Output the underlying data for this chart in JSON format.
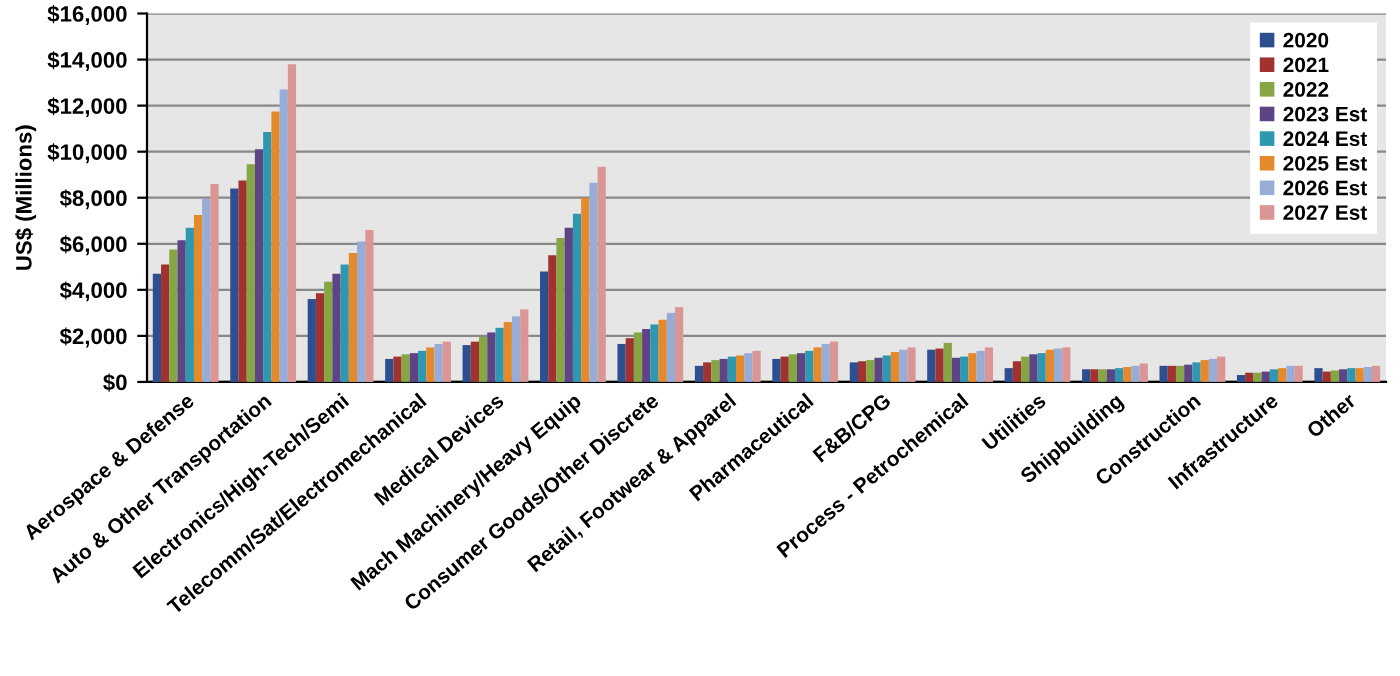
{
  "chart_data": {
    "type": "bar",
    "ylabel": "US$ (Millions)",
    "categories": [
      "Aerospace & Defense",
      "Auto & Other Transportation",
      "Electronics/High-Tech/Semi",
      "Telecomm/Sat/Electromechanical",
      "Medical Devices",
      "Mach Machinery/Heavy Equip",
      "Consumer Goods/Other Discrete",
      "Retail, Footwear & Apparel",
      "Pharmaceutical",
      "F&B/CPG",
      "Process - Petrochemical",
      "Utilities",
      "Shipbuilding",
      "Construction",
      "Infrastructure",
      "Other"
    ],
    "series": [
      {
        "name": "2020",
        "color": "#2e4f8f",
        "values": [
          4700,
          8400,
          3600,
          1000,
          1600,
          4800,
          1650,
          700,
          1000,
          850,
          1400,
          600,
          550,
          700,
          300,
          600
        ]
      },
      {
        "name": "2021",
        "color": "#a03230",
        "values": [
          5100,
          8750,
          3850,
          1100,
          1750,
          5500,
          1900,
          850,
          1100,
          900,
          1450,
          900,
          550,
          700,
          400,
          450
        ]
      },
      {
        "name": "2022",
        "color": "#86a543",
        "values": [
          5750,
          9450,
          4350,
          1200,
          1950,
          6250,
          2150,
          950,
          1200,
          950,
          1700,
          1100,
          550,
          700,
          400,
          500
        ]
      },
      {
        "name": "2023 Est",
        "color": "#5d4585",
        "values": [
          6150,
          10100,
          4700,
          1250,
          2150,
          6700,
          2300,
          1000,
          1250,
          1050,
          1050,
          1200,
          550,
          750,
          450,
          550
        ]
      },
      {
        "name": "2024 Est",
        "color": "#2f97b0",
        "values": [
          6700,
          10850,
          5100,
          1350,
          2350,
          7300,
          2500,
          1100,
          1350,
          1150,
          1100,
          1250,
          600,
          850,
          550,
          600
        ]
      },
      {
        "name": "2025 Est",
        "color": "#e58a2c",
        "values": [
          7250,
          11750,
          5600,
          1500,
          2600,
          8000,
          2700,
          1150,
          1500,
          1300,
          1250,
          1400,
          650,
          950,
          600,
          600
        ]
      },
      {
        "name": "2026 Est",
        "color": "#97acd6",
        "values": [
          7950,
          12700,
          6100,
          1650,
          2850,
          8650,
          3000,
          1250,
          1650,
          1400,
          1350,
          1450,
          700,
          1000,
          700,
          650
        ]
      },
      {
        "name": "2027 Est",
        "color": "#d99694",
        "values": [
          8600,
          13800,
          6600,
          1750,
          3150,
          9350,
          3250,
          1350,
          1750,
          1500,
          1500,
          1500,
          800,
          1100,
          700,
          700
        ]
      }
    ],
    "ylim": [
      0,
      16000
    ],
    "yticks": [
      {
        "value": 0,
        "label": "$0"
      },
      {
        "value": 2000,
        "label": "$2,000"
      },
      {
        "value": 4000,
        "label": "$4,000"
      },
      {
        "value": 6000,
        "label": "$6,000"
      },
      {
        "value": 8000,
        "label": "$8,000"
      },
      {
        "value": 10000,
        "label": "$10,000"
      },
      {
        "value": 12000,
        "label": "$12,000"
      },
      {
        "value": 14000,
        "label": "$14,000"
      },
      {
        "value": 16000,
        "label": "$16,000"
      }
    ],
    "grid": "y",
    "legend": "top right"
  }
}
